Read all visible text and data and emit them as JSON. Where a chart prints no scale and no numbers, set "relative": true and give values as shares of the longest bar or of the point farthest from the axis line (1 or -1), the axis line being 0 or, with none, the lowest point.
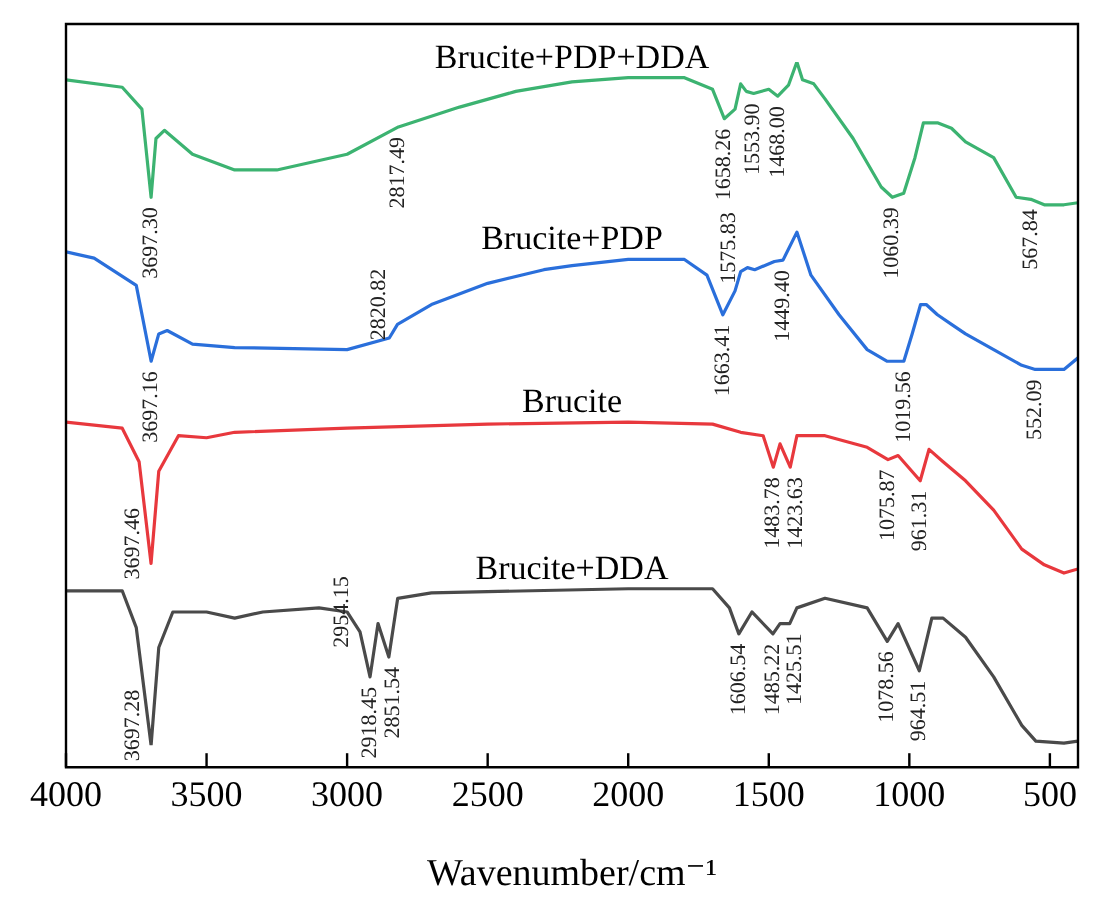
{
  "chart_data": {
    "type": "line",
    "relative": true,
    "xlabel": "Wavenumber/cm⁻¹",
    "xlim": [
      4000,
      400
    ],
    "xticks": [
      4000,
      3500,
      3000,
      2500,
      2000,
      1500,
      1000,
      500
    ],
    "marker": "none",
    "legend": false,
    "series": [
      {
        "name": "Brucite+PDP+DDA",
        "color": "#3cb371",
        "x": [
          4000,
          3800,
          3730,
          3697.3,
          3680,
          3650,
          3550,
          3400,
          3250,
          3000,
          2817.49,
          2600,
          2400,
          2200,
          2000,
          1800,
          1700,
          1658.26,
          1620,
          1600,
          1580,
          1553.9,
          1500,
          1468,
          1430,
          1400,
          1380,
          1340,
          1300,
          1200,
          1100,
          1060.39,
          1020,
          980,
          950,
          900,
          850,
          800,
          700,
          620,
          567.84,
          520,
          450,
          400
        ],
        "values": [
          0.974,
          0.963,
          0.931,
          0.802,
          0.888,
          0.9,
          0.865,
          0.842,
          0.842,
          0.865,
          0.905,
          0.934,
          0.957,
          0.971,
          0.977,
          0.977,
          0.96,
          0.917,
          0.931,
          0.968,
          0.957,
          0.954,
          0.96,
          0.95,
          0.966,
          1,
          0.974,
          0.968,
          0.946,
          0.888,
          0.817,
          0.802,
          0.808,
          0.86,
          0.911,
          0.911,
          0.903,
          0.883,
          0.86,
          0.802,
          0.799,
          0.791,
          0.791,
          0.794
        ]
      },
      {
        "name": "Brucite+PDP",
        "color": "#2a6fdb",
        "x": [
          4000,
          3900,
          3750,
          3697.16,
          3670,
          3640,
          3550,
          3400,
          3000,
          2850,
          2820.82,
          2700,
          2500,
          2300,
          2200,
          2000,
          1800,
          1720,
          1663.41,
          1620,
          1600,
          1575.83,
          1550,
          1480,
          1449.4,
          1400,
          1350,
          1250,
          1150,
          1080,
          1019.56,
          990,
          960,
          940,
          900,
          850,
          800,
          700,
          600,
          552.09,
          450,
          400
        ],
        "values": [
          0.722,
          0.713,
          0.673,
          0.562,
          0.602,
          0.607,
          0.587,
          0.582,
          0.579,
          0.596,
          0.616,
          0.645,
          0.676,
          0.696,
          0.702,
          0.711,
          0.711,
          0.688,
          0.63,
          0.665,
          0.693,
          0.699,
          0.696,
          0.708,
          0.71,
          0.751,
          0.688,
          0.63,
          0.579,
          0.562,
          0.562,
          0.602,
          0.645,
          0.645,
          0.63,
          0.616,
          0.602,
          0.579,
          0.556,
          0.55,
          0.55,
          0.567
        ]
      },
      {
        "name": "Brucite",
        "color": "#e8383d",
        "x": [
          4000,
          3800,
          3740,
          3697.46,
          3670,
          3600,
          3500,
          3400,
          3000,
          2500,
          2000,
          1700,
          1600,
          1520,
          1483.78,
          1460,
          1423.63,
          1400,
          1300,
          1150,
          1075.87,
          1040,
          961.31,
          930,
          880,
          800,
          700,
          600,
          520,
          450,
          400
        ],
        "values": [
          0.473,
          0.464,
          0.415,
          0.266,
          0.401,
          0.453,
          0.45,
          0.458,
          0.464,
          0.47,
          0.473,
          0.47,
          0.458,
          0.453,
          0.407,
          0.441,
          0.407,
          0.453,
          0.453,
          0.436,
          0.418,
          0.424,
          0.387,
          0.433,
          0.415,
          0.387,
          0.344,
          0.287,
          0.264,
          0.252,
          0.258
        ]
      },
      {
        "name": "Brucite+DDA",
        "color": "#4a4a4a",
        "x": [
          4000,
          3800,
          3750,
          3697.28,
          3670,
          3620,
          3500,
          3400,
          3300,
          3100,
          3000,
          2954.15,
          2918.45,
          2890,
          2851.54,
          2820,
          2700,
          2000,
          1700,
          1640,
          1606.54,
          1560,
          1485.22,
          1460,
          1425.51,
          1400,
          1300,
          1150,
          1078.56,
          1040,
          964.51,
          920,
          880,
          800,
          700,
          600,
          550,
          450,
          400
        ],
        "values": [
          0.226,
          0.226,
          0.172,
          0,
          0.143,
          0.195,
          0.195,
          0.186,
          0.195,
          0.201,
          0.195,
          0.166,
          0.1,
          0.178,
          0.129,
          0.215,
          0.223,
          0.229,
          0.229,
          0.201,
          0.163,
          0.195,
          0.163,
          0.178,
          0.178,
          0.201,
          0.215,
          0.201,
          0.152,
          0.178,
          0.109,
          0.186,
          0.186,
          0.158,
          0.1,
          0.029,
          0.006,
          0.003,
          0.006
        ]
      }
    ],
    "annotations": [
      {
        "text": "3697.30",
        "x": 3697.3,
        "y": 0.802
      },
      {
        "text": "2817.49",
        "x": 2817.49,
        "y": 0.905
      },
      {
        "text": "1658.26",
        "x": 1658.26,
        "y": 0.917
      },
      {
        "text": "1553.90",
        "x": 1553.9,
        "y": 0.954
      },
      {
        "text": "1468.00",
        "x": 1468,
        "y": 0.95
      },
      {
        "text": "1060.39",
        "x": 1060.39,
        "y": 0.802
      },
      {
        "text": "567.84",
        "x": 567.84,
        "y": 0.799
      },
      {
        "text": "3697.16",
        "x": 3697.16,
        "y": 0.562
      },
      {
        "text": "2820.82",
        "x": 2820.82,
        "y": 0.616
      },
      {
        "text": "1663.41",
        "x": 1663.41,
        "y": 0.63
      },
      {
        "text": "1575.83",
        "x": 1575.83,
        "y": 0.699
      },
      {
        "text": "1449.40",
        "x": 1449.4,
        "y": 0.71
      },
      {
        "text": "1019.56",
        "x": 1019.56,
        "y": 0.562
      },
      {
        "text": "552.09",
        "x": 552.09,
        "y": 0.55
      },
      {
        "text": "3697.46",
        "x": 3697.46,
        "y": 0.266
      },
      {
        "text": "1483.78",
        "x": 1483.78,
        "y": 0.407
      },
      {
        "text": "1423.63",
        "x": 1423.63,
        "y": 0.407
      },
      {
        "text": "1075.87",
        "x": 1075.87,
        "y": 0.418
      },
      {
        "text": "961.31",
        "x": 961.31,
        "y": 0.387
      },
      {
        "text": "3697.28",
        "x": 3697.28,
        "y": 0
      },
      {
        "text": "2954.15",
        "x": 2954.15,
        "y": 0.166
      },
      {
        "text": "2918.45",
        "x": 2918.45,
        "y": 0.1
      },
      {
        "text": "2851.54",
        "x": 2851.54,
        "y": 0.129
      },
      {
        "text": "1606.54",
        "x": 1606.54,
        "y": 0.163
      },
      {
        "text": "1485.22",
        "x": 1485.22,
        "y": 0.163
      },
      {
        "text": "1425.51",
        "x": 1425.51,
        "y": 0.178
      },
      {
        "text": "1078.56",
        "x": 1078.56,
        "y": 0.152
      },
      {
        "text": "964.51",
        "x": 964.51,
        "y": 0.109
      }
    ]
  }
}
